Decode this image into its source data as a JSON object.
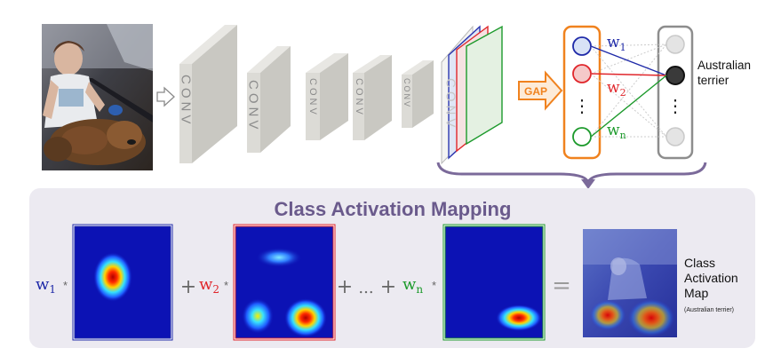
{
  "photo": {
    "subject": "boy-with-dog-in-car"
  },
  "network": {
    "conv_label": "CONV",
    "gap_label": "GAP",
    "weight_symbol": "w",
    "weights": [
      {
        "sub": "1",
        "color": "#1f2aa8"
      },
      {
        "sub": "2",
        "color": "#e0262b"
      },
      {
        "sub": "n",
        "color": "#1d9a2c"
      }
    ],
    "node_ellipsis": "⋮",
    "output_class_line1": "Australian",
    "output_class_line2": "terrier"
  },
  "cam": {
    "title": "Class Activation Mapping",
    "operators": {
      "times": "*",
      "plus": "+",
      "ellipsis": "...",
      "equals": "="
    },
    "result_line1": "Class",
    "result_line2": "Activation",
    "result_line3": "Map",
    "result_note": "(Australian terrier)"
  },
  "colors": {
    "weight_1": "#1f2aa8",
    "weight_2": "#e0262b",
    "weight_n": "#1d9a2c",
    "gap_orange": "#f0821e",
    "panel_bg": "#eceaf1",
    "title_purple": "#6a5a8c",
    "arrow_purple": "#7b6a9a",
    "conv_block": "#dcdbd6",
    "heatmap_bg": "#0c12b4"
  }
}
